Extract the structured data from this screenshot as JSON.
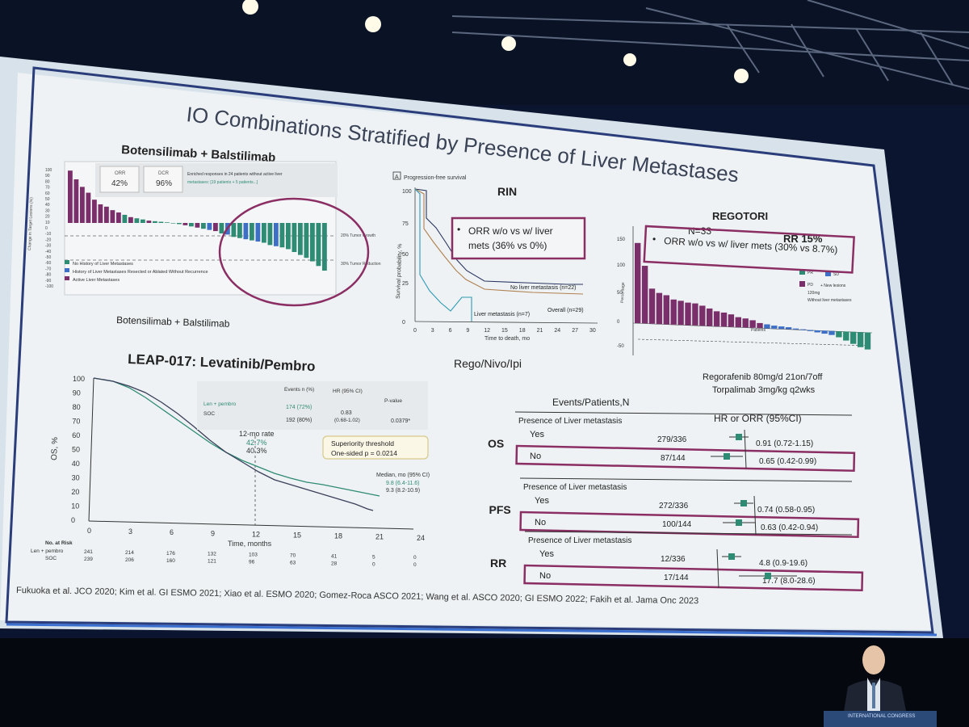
{
  "colors": {
    "purple": "#7a2e6a",
    "teal": "#2e8b74",
    "blue": "#3e6fc7",
    "box": "#8a2e63",
    "bg": "#e9eef1"
  },
  "slide": {
    "title": "IO Combinations Stratified by Presence of Liver Metastases",
    "citation": "Fukuoka et al. JCO 2020; Kim et al. GI ESMO 2021; Xiao et al. ESMO 2020; Gomez-Roca ASCO 2021; Wang et al. ASCO 2020; GI ESMO 2022; Fakih et al. Jama Onc 2023"
  },
  "bot": {
    "heading": "Botensilimab + Balstilimab",
    "caption": "Botensilimab + Balstilimab",
    "orr_label": "ORR",
    "orr_value": "42%",
    "dcr_label": "DCR",
    "dcr_value": "96%",
    "note1": "Enriched responses in 24 patients without active liver",
    "note2": "metastases: [19 patients + 5 patients...]",
    "ylabel": "Change in Target Lesions (%)",
    "ref1": "20% Tumor Growth",
    "ref2": "30% Tumor Reduction",
    "legend": [
      "No History of Liver Metastases",
      "History of Liver Metastases Resected or Ablated Without Recurrence",
      "Active Liver Metastases"
    ],
    "ticks": [
      "100",
      "90",
      "80",
      "70",
      "60",
      "50",
      "40",
      "30",
      "20",
      "10",
      "0",
      "-10",
      "-20",
      "-30",
      "-40",
      "-50",
      "-60",
      "-70",
      "-80",
      "-90",
      "-100"
    ]
  },
  "rin": {
    "panel_label": "A",
    "panel_title": "Progression-free survival",
    "heading": "RIN",
    "bullet": "•",
    "box_line1": "ORR w/o vs w/ liver",
    "box_line2": "mets (36% vs 0%)",
    "ylabel": "Survival probability, %",
    "xlabel": "Time to death, mo",
    "yticks": [
      "100",
      "75",
      "50",
      "25",
      "0"
    ],
    "xticks": [
      "0",
      "3",
      "6",
      "9",
      "12",
      "15",
      "18",
      "21",
      "24",
      "27",
      "30"
    ],
    "curve1": "No liver metastasis (n=22)",
    "curve2": "Overall (n=29)",
    "curve3": "Liver metastasis (n=7)"
  },
  "rego": {
    "heading": "REGOTORI",
    "n": "N=33",
    "rr": "RR 15%",
    "box_text": "ORR w/o vs w/ liver mets (30% vs 8.7%)",
    "bullet": "•",
    "ylabel": "Percentage",
    "yticks": [
      "150",
      "100",
      "50",
      "0",
      "-50"
    ],
    "legend_pr": "PR",
    "legend_sd": "SD",
    "legend_pd": "PD",
    "legend_new": "+ New lesions",
    "legend_dose": "120mg",
    "legend_wo": "Without liver metastases",
    "xlabel": "Patients",
    "footer1": "Regorafenib 80mg/d 21on/7off",
    "footer2": "Torpalimab 3mg/kg q2wks"
  },
  "leap": {
    "heading": "LEAP-017: Levatinib/Pembro",
    "ylabel": "OS, %",
    "xlabel": "Time, months",
    "yticks": [
      "100",
      "90",
      "80",
      "70",
      "60",
      "50",
      "40",
      "30",
      "20",
      "10",
      "0"
    ],
    "xticks": [
      "0",
      "3",
      "6",
      "9",
      "12",
      "15",
      "18",
      "21",
      "24"
    ],
    "table_headers": [
      "",
      "Events n (%)",
      "HR (95% CI)",
      "P-value"
    ],
    "row1": [
      "Len + pembro",
      "174 (72%)",
      "0.83",
      "0.0379*"
    ],
    "row1_ci": "(0.68-1.02)",
    "row2": [
      "SOC",
      "192 (80%)"
    ],
    "rate_label": "12-mo rate",
    "rate1": "42.7%",
    "rate2": "40.3%",
    "sup_line1": "Superiority threshold",
    "sup_line2": "One-sided p = 0.0214",
    "median_label": "Median, mo (95% CI)",
    "median1": "9.8 (6.4-11.6)",
    "median2": "9.3 (8.2-10.9)",
    "risk_title": "No. at Risk",
    "risk_row1_label": "Len + pembro",
    "risk_row1": [
      "241",
      "214",
      "176",
      "132",
      "103",
      "70",
      "41",
      "5",
      "0"
    ],
    "risk_row2_label": "SOC",
    "risk_row2": [
      "239",
      "206",
      "160",
      "121",
      "96",
      "63",
      "28",
      "0",
      "0"
    ]
  },
  "forest": {
    "heading": "Rego/Nivo/Ipi",
    "col1": "Events/Patients,N",
    "col2": "HR or ORR (95%CI)",
    "sections": [
      {
        "label": "OS",
        "sub": "Presence of Liver metastasis",
        "yes_label": "Yes",
        "yes_val": "279/336",
        "yes_ci": "0.91 (0.72-1.15)",
        "no_label": "No",
        "no_val": "87/144",
        "no_ci": "0.65 (0.42-0.99)"
      },
      {
        "label": "PFS",
        "sub": "Presence of Liver metastasis",
        "yes_label": "Yes",
        "yes_val": "272/336",
        "yes_ci": "0.74 (0.58-0.95)",
        "no_label": "No",
        "no_val": "100/144",
        "no_ci": "0.63 (0.42-0.94)"
      },
      {
        "label": "RR",
        "sub": "Presence of Liver metastasis",
        "yes_label": "Yes",
        "yes_val": "12/336",
        "yes_ci": "4.8 (0.9-19.6)",
        "no_label": "No",
        "no_val": "17/144",
        "no_ci": "17.7 (8.0-28.6)"
      }
    ]
  },
  "podium": {
    "text": "INTERNATIONAL CONGRESS"
  }
}
